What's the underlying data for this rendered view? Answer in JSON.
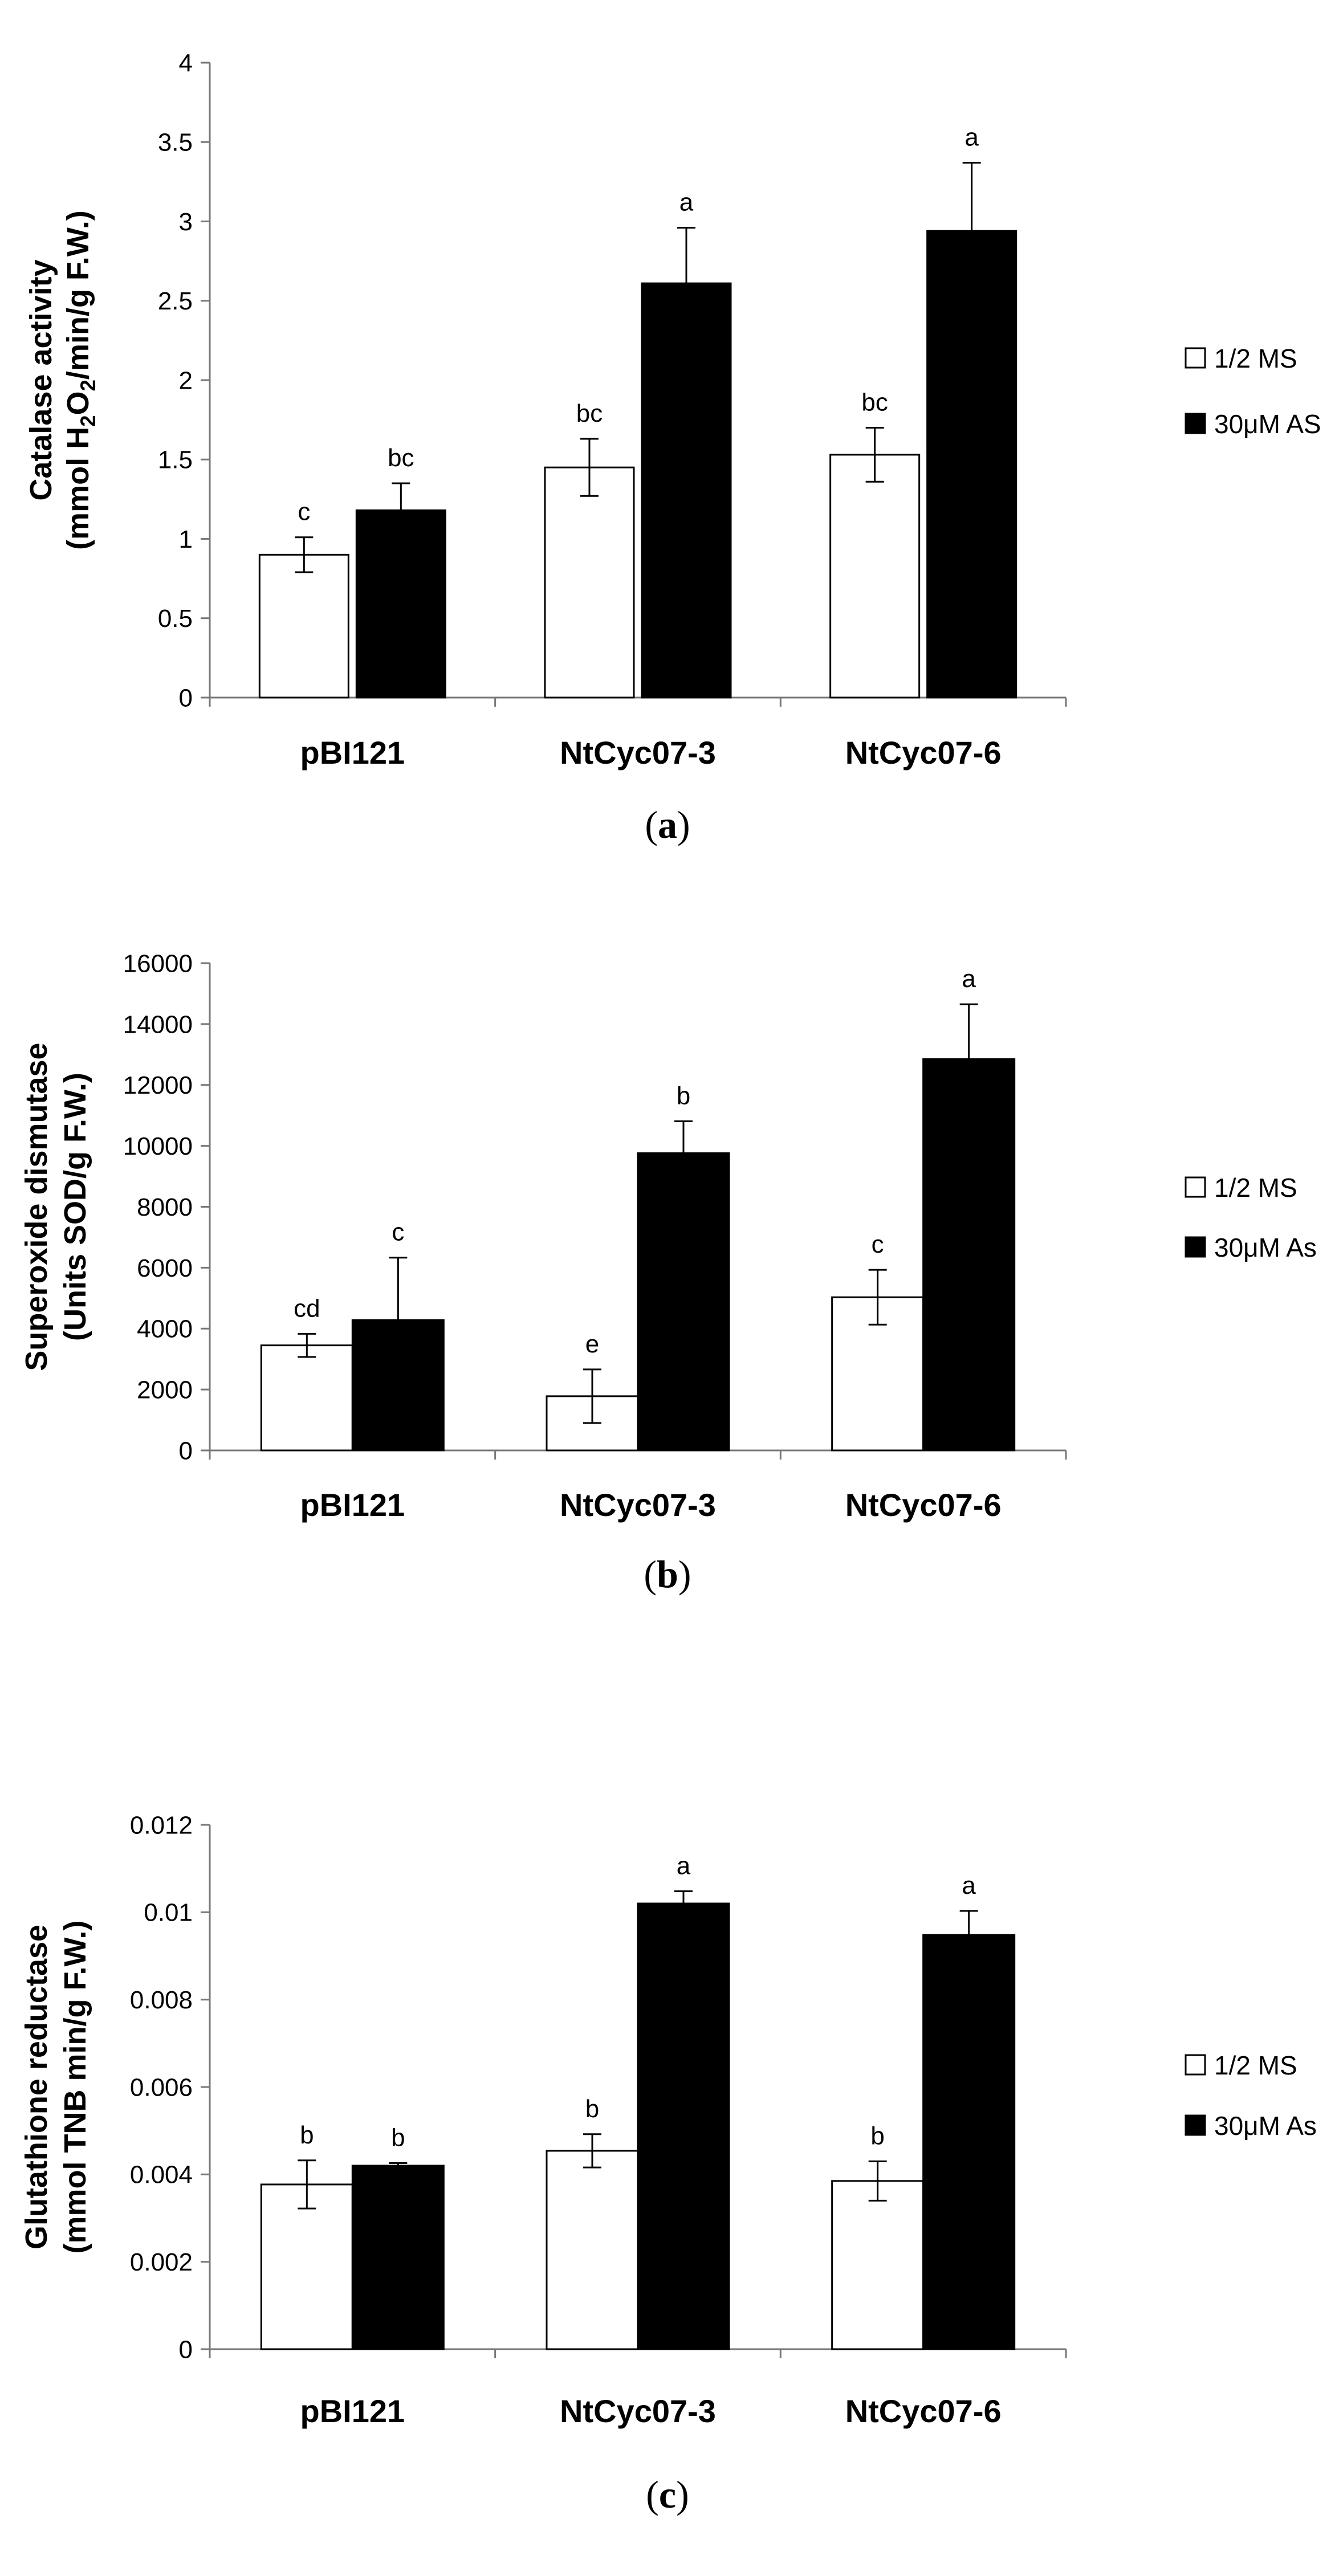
{
  "chart_data": [
    {
      "type": "bar",
      "panel": "a",
      "panel_label": "(a)",
      "ylabel_line1": "Catalase activity",
      "ylabel_line2_parts": [
        "(mmol H",
        "2",
        "O",
        "2",
        "/min/g F.W.)"
      ],
      "ylim": [
        0,
        4
      ],
      "yticks": [
        "0",
        "0.5",
        "1",
        "1.5",
        "2",
        "2.5",
        "3",
        "3.5",
        "4"
      ],
      "ytick_values": [
        0,
        0.5,
        1,
        1.5,
        2,
        2.5,
        3,
        3.5,
        4
      ],
      "categories": [
        "pBI121",
        "NtCyc07-3",
        "NtCyc07-6"
      ],
      "series": [
        {
          "name": "1/2 MS",
          "color": "#ffffff",
          "values": [
            0.9,
            1.45,
            1.53
          ],
          "errors": [
            0.11,
            0.18,
            0.17
          ],
          "sig": [
            "c",
            "bc",
            "bc"
          ]
        },
        {
          "name": "30μM AS",
          "color": "#000000",
          "values": [
            1.18,
            2.61,
            2.94
          ],
          "errors": [
            0.17,
            0.35,
            0.43
          ],
          "sig": [
            "bc",
            "a",
            "a"
          ]
        }
      ],
      "legend": [
        "1/2 MS",
        "30μM AS"
      ]
    },
    {
      "type": "bar",
      "panel": "b",
      "panel_label": "(b)",
      "ylabel_line1": "Superoxide dismutase",
      "ylabel_line2_parts": [
        "(Units SOD/g F.W.)"
      ],
      "ylim": [
        0,
        16000
      ],
      "yticks": [
        "0",
        "2000",
        "4000",
        "6000",
        "8000",
        "10000",
        "12000",
        "14000",
        "16000"
      ],
      "ytick_values": [
        0,
        2000,
        4000,
        6000,
        8000,
        10000,
        12000,
        14000,
        16000
      ],
      "categories": [
        "pBI121",
        "NtCyc07-3",
        "NtCyc07-6"
      ],
      "series": [
        {
          "name": "1/2 MS",
          "color": "#ffffff",
          "values": [
            3450,
            1780,
            5030
          ],
          "errors": [
            380,
            880,
            900
          ],
          "sig": [
            "cd",
            "e",
            "c"
          ]
        },
        {
          "name": "30μM As",
          "color": "#000000",
          "values": [
            4280,
            9760,
            12850
          ],
          "errors": [
            2050,
            1050,
            1800
          ],
          "sig": [
            "c",
            "b",
            "a"
          ]
        }
      ],
      "legend": [
        "1/2 MS",
        "30μM As"
      ]
    },
    {
      "type": "bar",
      "panel": "c",
      "panel_label": "(c)",
      "ylabel_line1": "Glutathione reductase",
      "ylabel_line2_parts": [
        "(mmol TNB  min/g F.W.)"
      ],
      "ylim": [
        0,
        0.012
      ],
      "yticks": [
        "0",
        "0.002",
        "0.004",
        "0.006",
        "0.008",
        "0.01",
        "0.012"
      ],
      "ytick_values": [
        0,
        0.002,
        0.004,
        0.006,
        0.008,
        0.01,
        0.012
      ],
      "categories": [
        "pBI121",
        "NtCyc07-3",
        "NtCyc07-6"
      ],
      "series": [
        {
          "name": "1/2 MS",
          "color": "#ffffff",
          "values": [
            0.00377,
            0.00454,
            0.00385
          ],
          "errors": [
            0.00055,
            0.00038,
            0.00045
          ],
          "sig": [
            "b",
            "b",
            "b"
          ]
        },
        {
          "name": "30μM As",
          "color": "#000000",
          "values": [
            0.0042,
            0.0102,
            0.00948
          ],
          "errors": [
            6e-05,
            0.00028,
            0.00055
          ],
          "sig": [
            "b",
            "a",
            "a"
          ]
        }
      ],
      "legend": [
        "1/2 MS",
        "30μM As"
      ]
    }
  ]
}
